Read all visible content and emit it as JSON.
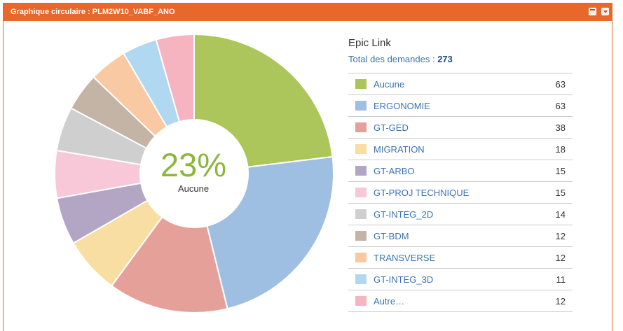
{
  "gadget": {
    "title": "Graphique circulaire : PLM2W10_VABF_ANO",
    "icons": [
      "window-icon",
      "menu-dropdown-icon"
    ]
  },
  "center": {
    "percent": "23%",
    "label": "Aucune"
  },
  "legend": {
    "title": "Epic Link",
    "total_label": "Total des demandes :",
    "total_value": "273"
  },
  "chart_data": {
    "type": "pie",
    "style": "donut",
    "start": "top, clockwise",
    "total": 273,
    "categories": [
      "Aucune",
      "ERGONOMIE",
      "GT-GED",
      "MIGRATION",
      "GT-ARBO",
      "GT-PROJ TECHNIQUE",
      "GT-INTEG_2D",
      "GT-BDM",
      "TRANSVERSE",
      "GT-INTEG_3D",
      "Autre…"
    ],
    "values": [
      63,
      63,
      38,
      18,
      15,
      15,
      14,
      12,
      12,
      11,
      12
    ],
    "colors": [
      "#acc65b",
      "#9fbfe2",
      "#e6a09a",
      "#f8dea2",
      "#b3a6c4",
      "#f8c8d8",
      "#cfcfcf",
      "#c4b4a6",
      "#f8c9a2",
      "#b0d8f0",
      "#f6b4c0"
    ]
  }
}
